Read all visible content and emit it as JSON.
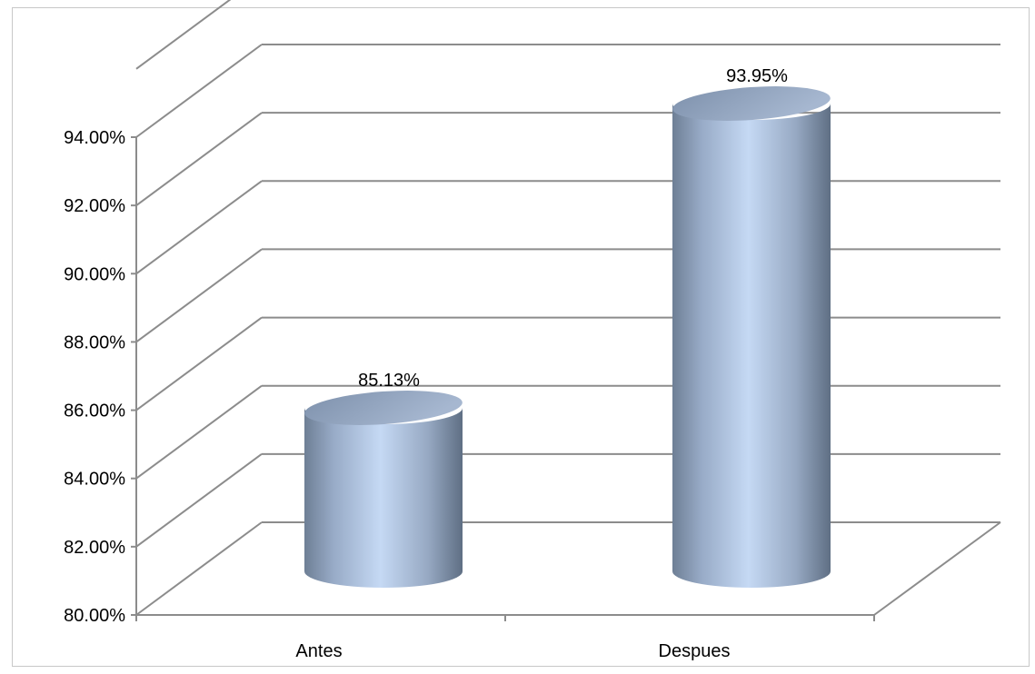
{
  "chart_data": {
    "type": "bar",
    "style": "3d-cylinder",
    "categories": [
      "Antes",
      "Despues"
    ],
    "series": [
      {
        "values": [
          85.13,
          93.95
        ]
      }
    ],
    "data_labels": [
      "85.13%",
      "93.95%"
    ],
    "title": "",
    "xlabel": "",
    "ylabel": "",
    "ylim": [
      80,
      96
    ],
    "y_ticks": [
      "80.00%",
      "82.00%",
      "84.00%",
      "86.00%",
      "88.00%",
      "90.00%",
      "92.00%",
      "94.00%"
    ],
    "grid": true,
    "legend": "none",
    "colors": {
      "bar": "#a9bfdf",
      "bar_highlight": "#c5d9f4",
      "bar_shade": "#6e7f95",
      "gridline": "#8c8c8c"
    }
  }
}
